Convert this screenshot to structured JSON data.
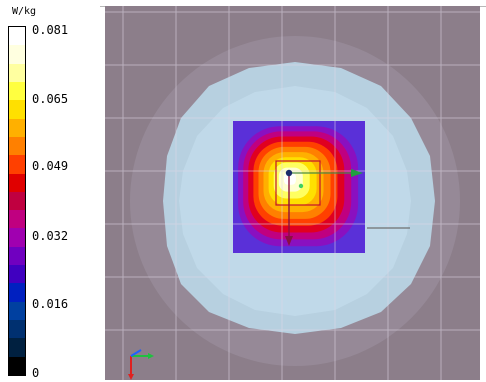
{
  "legend": {
    "unit": "W/kg",
    "ticks": [
      "0.081",
      "0.065",
      "0.049",
      "0.032",
      "0.016",
      "0"
    ],
    "colors": [
      "#ffffff",
      "#ffffe0",
      "#ffffa0",
      "#ffff40",
      "#ffe000",
      "#ffb000",
      "#ff8000",
      "#ff4000",
      "#e00000",
      "#c00040",
      "#c00080",
      "#a000b0",
      "#7000c0",
      "#4000c0",
      "#0020c0",
      "#0040a0",
      "#003070",
      "#002040",
      "#000000"
    ]
  },
  "viewport": {
    "background": "#8c7e8a",
    "grid": true,
    "halo_color": "#b8d4e4",
    "hot_square_colors": [
      "#5a30d8",
      "#8a10c0",
      "#c00080",
      "#e00020",
      "#ff4000",
      "#ff8000",
      "#ffb000",
      "#ffe000",
      "#ffff60",
      "#ffffd0",
      "#ffffff"
    ],
    "axes_icon": {
      "x_color": "#20c040",
      "y_color": "#e02020",
      "z_color": "#2060ff"
    }
  }
}
